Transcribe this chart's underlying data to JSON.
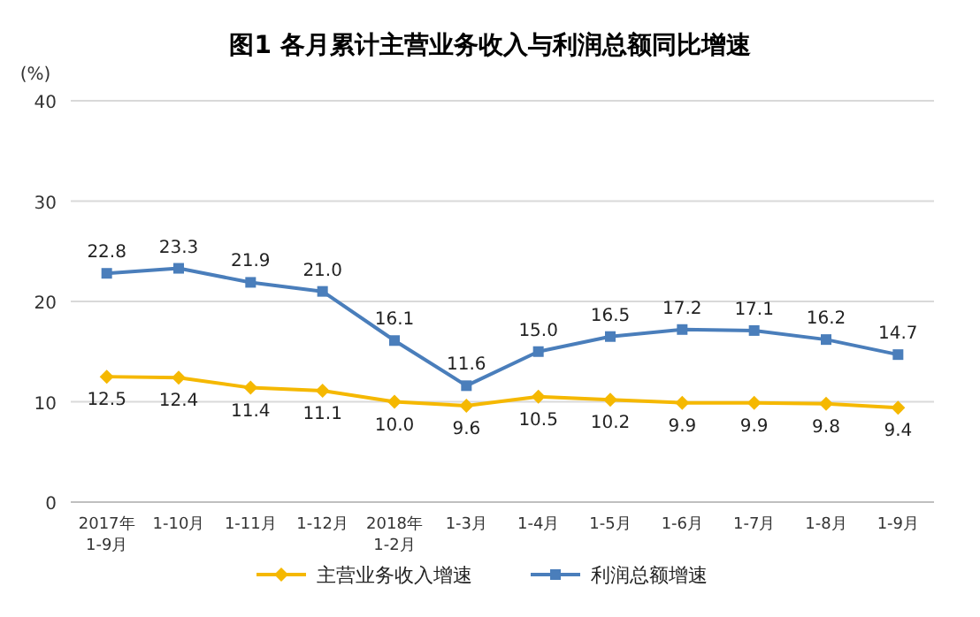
{
  "chart_data": {
    "type": "line",
    "title": "图1  各月累计主营业务收入与利润总额同比增速",
    "ylabel": "(%)",
    "categories": [
      "2017年\n1-9月",
      "1-10月",
      "1-11月",
      "1-12月",
      "2018年\n1-2月",
      "1-3月",
      "1-4月",
      "1-5月",
      "1-6月",
      "1-7月",
      "1-8月",
      "1-9月"
    ],
    "series": [
      {
        "name": "主营业务收入增速",
        "color": "#f5b800",
        "marker": "diamond",
        "values": [
          12.5,
          12.4,
          11.4,
          11.1,
          10.0,
          9.6,
          10.5,
          10.2,
          9.9,
          9.9,
          9.8,
          9.4
        ],
        "value_labels": [
          "12.5",
          "12.4",
          "11.4",
          "11.1",
          "10.0",
          "9.6",
          "10.5",
          "10.2",
          "9.9",
          "9.9",
          "9.8",
          "9.4"
        ]
      },
      {
        "name": "利润总额增速",
        "color": "#4a7ebb",
        "marker": "square",
        "values": [
          22.8,
          23.3,
          21.9,
          21.0,
          16.1,
          11.6,
          15.0,
          16.5,
          17.2,
          17.1,
          16.2,
          14.7
        ],
        "value_labels": [
          "22.8",
          "23.3",
          "21.9",
          "21.0",
          "16.1",
          "11.6",
          "15.0",
          "16.5",
          "17.2",
          "17.1",
          "16.2",
          "14.7"
        ]
      }
    ],
    "ylim": [
      0,
      40
    ],
    "yticks": [
      0,
      10,
      20,
      30,
      40
    ],
    "grid": "y",
    "legend": "bottom"
  }
}
